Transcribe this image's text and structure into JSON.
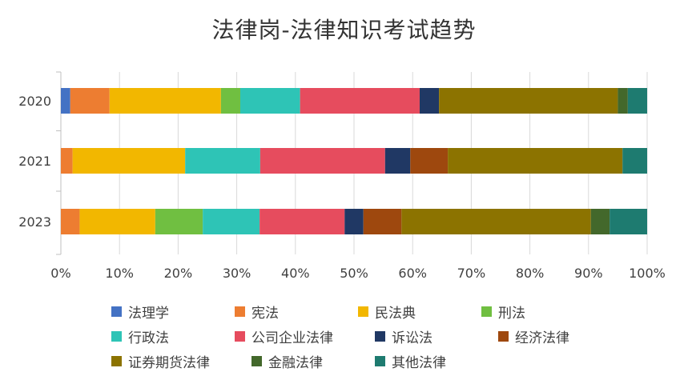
{
  "chart_data": {
    "type": "bar",
    "orientation": "horizontal",
    "stacked": "percent",
    "title": "法律岗-法律知识考试趋势",
    "categories": [
      "2020",
      "2021",
      "2023"
    ],
    "xlim": [
      0,
      100
    ],
    "x_ticks": [
      "0%",
      "10%",
      "20%",
      "30%",
      "40%",
      "50%",
      "60%",
      "70%",
      "80%",
      "90%",
      "100%"
    ],
    "grid": "vertical",
    "legend_position": "bottom",
    "series": [
      {
        "name": "法理学",
        "color": "#4472C4",
        "values": [
          1.6,
          0,
          0
        ]
      },
      {
        "name": "宪法",
        "color": "#ED7D31",
        "values": [
          6.7,
          2.0,
          3.2
        ]
      },
      {
        "name": "民法典",
        "color": "#F2B700",
        "values": [
          19.0,
          19.2,
          12.9
        ]
      },
      {
        "name": "刑法",
        "color": "#70BF41",
        "values": [
          3.3,
          0,
          8.1
        ]
      },
      {
        "name": "行政法",
        "color": "#2EC4B6",
        "values": [
          10.2,
          12.8,
          9.7
        ]
      },
      {
        "name": "公司企业法律",
        "color": "#E64C5E",
        "values": [
          20.4,
          21.3,
          14.5
        ]
      },
      {
        "name": "诉讼法",
        "color": "#203864",
        "values": [
          3.3,
          4.3,
          3.2
        ]
      },
      {
        "name": "经济法律",
        "color": "#9E480E",
        "values": [
          0,
          6.4,
          6.5
        ]
      },
      {
        "name": "证券期货法律",
        "color": "#8C7300",
        "values": [
          30.5,
          29.8,
          32.3
        ]
      },
      {
        "name": "金融法律",
        "color": "#43682B",
        "values": [
          1.7,
          0,
          3.2
        ]
      },
      {
        "name": "其他法律",
        "color": "#1E7B70",
        "values": [
          3.3,
          4.2,
          6.4
        ]
      }
    ]
  }
}
